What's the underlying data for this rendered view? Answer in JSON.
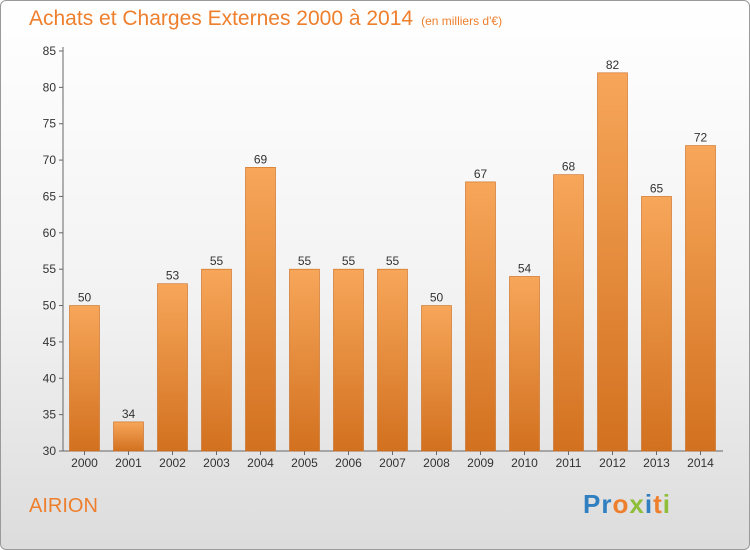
{
  "header": {
    "title": "Achats et Charges Externes 2000 à 2014",
    "unit_note": "(en milliers d'€)"
  },
  "footer": {
    "town": "AIRION"
  },
  "logo": {
    "text": "Proxiti",
    "letters": [
      {
        "ch": "P",
        "color": "#2f7fc1"
      },
      {
        "ch": "r",
        "color": "#2f7fc1"
      },
      {
        "ch": "o",
        "color": "#ee7f2d"
      },
      {
        "ch": "x",
        "color": "#8fbf3a"
      },
      {
        "ch": "i",
        "color": "#2f7fc1"
      },
      {
        "ch": "t",
        "color": "#ee7f2d"
      },
      {
        "ch": "i",
        "color": "#8fbf3a"
      }
    ]
  },
  "chart_data": {
    "type": "bar",
    "title": "Achats et Charges Externes 2000 à 2014",
    "subtitle": "(en milliers d'€)",
    "xlabel": "",
    "ylabel": "",
    "categories": [
      "2000",
      "2001",
      "2002",
      "2003",
      "2004",
      "2005",
      "2006",
      "2007",
      "2008",
      "2009",
      "2010",
      "2011",
      "2012",
      "2013",
      "2014"
    ],
    "values": [
      50,
      34,
      53,
      55,
      69,
      55,
      55,
      55,
      50,
      67,
      54,
      68,
      82,
      65,
      72
    ],
    "ylim": [
      30,
      85
    ],
    "yticks": [
      30,
      35,
      40,
      45,
      50,
      55,
      60,
      65,
      70,
      75,
      80,
      85
    ],
    "grid": false,
    "data_labels": true,
    "colors": {
      "bar_light": "#f7a65a",
      "bar_dark": "#d2711f",
      "title": "#ee7f2d",
      "axis": "#666666"
    }
  }
}
